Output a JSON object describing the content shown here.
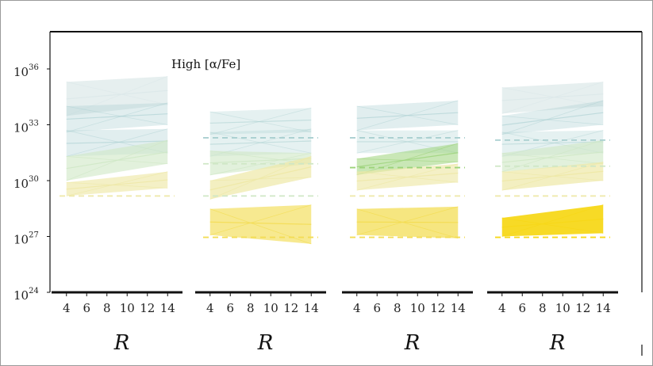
{
  "chart_data": {
    "type": "area",
    "annotation": "High [α/Fe]",
    "y_scale": "log",
    "ylim": [
      1e+24,
      1e+38
    ],
    "y_ticks": [
      {
        "base": "10",
        "exp": "24",
        "value": 1e+24
      },
      {
        "base": "10",
        "exp": "27",
        "value": 1e+27
      },
      {
        "base": "10",
        "exp": "30",
        "value": 1e+30
      },
      {
        "base": "10",
        "exp": "33",
        "value": 1e+33
      },
      {
        "base": "10",
        "exp": "36",
        "value": 1e+36
      }
    ],
    "xlim": [
      3,
      15
    ],
    "x_ticks": [
      "4",
      "6",
      "8",
      "10",
      "12",
      "14"
    ],
    "xlabel": "R",
    "colors": {
      "teal_faint": "#dde9ea",
      "teal": "#a9cfd0",
      "green_pale": "#cfe7c5",
      "green": "#9cd37a",
      "yellow_pale": "#eee8a7",
      "yellow": "#f3dd55",
      "yellow_bright": "#f7d81a"
    },
    "panels": [
      {
        "bands": [
          {
            "x": [
              4,
              14
            ],
            "lower": [
              3e+33,
              1.2e+34
            ],
            "upper": [
              2e+35,
              4e+35
            ],
            "color": "teal_faint",
            "opacity": 0.75
          },
          {
            "x": [
              4,
              14
            ],
            "lower": [
              4e+32,
              1e+33
            ],
            "upper": [
              1e+34,
              1.5e+34
            ],
            "color": "teal",
            "opacity": 0.35
          },
          {
            "x": [
              4,
              14
            ],
            "lower": [
              2e+31,
              3e+31
            ],
            "upper": [
              5e+32,
              6e+32
            ],
            "color": "teal",
            "opacity": 0.35
          },
          {
            "x": [
              4,
              14
            ],
            "lower": [
              1e+30,
              8e+30
            ],
            "upper": [
              2e+31,
              1.5e+32
            ],
            "color": "green_pale",
            "opacity": 0.6
          },
          {
            "x": [
              4,
              14
            ],
            "lower": [
              1.5e+29,
              4e+29
            ],
            "upper": [
              8e+29,
              3e+30
            ],
            "color": "yellow_pale",
            "opacity": 0.65
          }
        ],
        "dashed": [
          {
            "value": 1.5e+29,
            "color": "yellow_pale"
          }
        ]
      },
      {
        "bands": [
          {
            "x": [
              4,
              14
            ],
            "lower": [
              3e+32,
              4e+32
            ],
            "upper": [
              5e+33,
              8e+33
            ],
            "color": "teal",
            "opacity": 0.3
          },
          {
            "x": [
              4,
              14
            ],
            "lower": [
              2e+31,
              3e+31
            ],
            "upper": [
              4e+32,
              6e+32
            ],
            "color": "teal",
            "opacity": 0.3
          },
          {
            "x": [
              4,
              14
            ],
            "lower": [
              2e+30,
              8e+30
            ],
            "upper": [
              4e+31,
              3e+31
            ],
            "color": "green_pale",
            "opacity": 0.6
          },
          {
            "x": [
              4,
              14
            ],
            "lower": [
              1e+29,
              1.5e+30
            ],
            "upper": [
              1e+30,
              2e+31
            ],
            "color": "yellow_pale",
            "opacity": 0.7
          },
          {
            "x": [
              4,
              14
            ],
            "lower": [
              1.2e+27,
              4e+26
            ],
            "upper": [
              3e+28,
              5e+28
            ],
            "color": "yellow",
            "opacity": 0.65
          }
        ],
        "dashed": [
          {
            "value": 2e+32,
            "color": "teal"
          },
          {
            "value": 8e+30,
            "color": "green_pale"
          },
          {
            "value": 1.5e+29,
            "color": "green_pale"
          },
          {
            "value": 9e+26,
            "color": "yellow"
          }
        ]
      },
      {
        "bands": [
          {
            "x": [
              4,
              14
            ],
            "lower": [
              5e+32,
              1e+33
            ],
            "upper": [
              1e+34,
              2e+34
            ],
            "color": "teal",
            "opacity": 0.35
          },
          {
            "x": [
              4,
              14
            ],
            "lower": [
              3e+31,
              3e+31
            ],
            "upper": [
              5e+32,
              5e+32
            ],
            "color": "teal",
            "opacity": 0.3
          },
          {
            "x": [
              4,
              14
            ],
            "lower": [
              2e+30,
              1e+31
            ],
            "upper": [
              1.5e+31,
              1e+32
            ],
            "color": "green",
            "opacity": 0.55
          },
          {
            "x": [
              4,
              14
            ],
            "lower": [
              3e+29,
              8e+29
            ],
            "upper": [
              3e+30,
              8e+30
            ],
            "color": "yellow_pale",
            "opacity": 0.65
          },
          {
            "x": [
              4,
              14
            ],
            "lower": [
              1.2e+27,
              8e+26
            ],
            "upper": [
              3e+28,
              4e+28
            ],
            "color": "yellow",
            "opacity": 0.75
          }
        ],
        "dashed": [
          {
            "value": 2e+32,
            "color": "teal"
          },
          {
            "value": 5e+30,
            "color": "green"
          },
          {
            "value": 1.5e+29,
            "color": "yellow_pale"
          },
          {
            "value": 9e+26,
            "color": "yellow"
          }
        ]
      },
      {
        "bands": [
          {
            "x": [
              4,
              14
            ],
            "lower": [
              4e+33,
              1e+34
            ],
            "upper": [
              1e+35,
              2e+35
            ],
            "color": "teal_faint",
            "opacity": 0.75
          },
          {
            "x": [
              4,
              14
            ],
            "lower": [
              3e+32,
              1e+33
            ],
            "upper": [
              3e+33,
              2e+34
            ],
            "color": "teal",
            "opacity": 0.35
          },
          {
            "x": [
              4,
              14
            ],
            "lower": [
              2e+31,
              3e+31
            ],
            "upper": [
              4e+32,
              5e+32
            ],
            "color": "teal",
            "opacity": 0.3
          },
          {
            "x": [
              4,
              14
            ],
            "lower": [
              3e+30,
              8e+30
            ],
            "upper": [
              3e+31,
              1.5e+32
            ],
            "color": "green_pale",
            "opacity": 0.6
          },
          {
            "x": [
              4,
              14
            ],
            "lower": [
              3e+29,
              1e+30
            ],
            "upper": [
              3e+30,
              1e+31
            ],
            "color": "yellow_pale",
            "opacity": 0.7
          },
          {
            "x": [
              4,
              14
            ],
            "lower": [
              1e+27,
              1.5e+27
            ],
            "upper": [
              1e+28,
              5e+28
            ],
            "color": "yellow_bright",
            "opacity": 0.95
          }
        ],
        "dashed": [
          {
            "value": 1.5e+32,
            "color": "teal"
          },
          {
            "value": 6e+30,
            "color": "green_pale"
          },
          {
            "value": 1.5e+29,
            "color": "yellow_pale"
          },
          {
            "value": 9e+26,
            "color": "yellow_bright"
          }
        ]
      }
    ]
  }
}
